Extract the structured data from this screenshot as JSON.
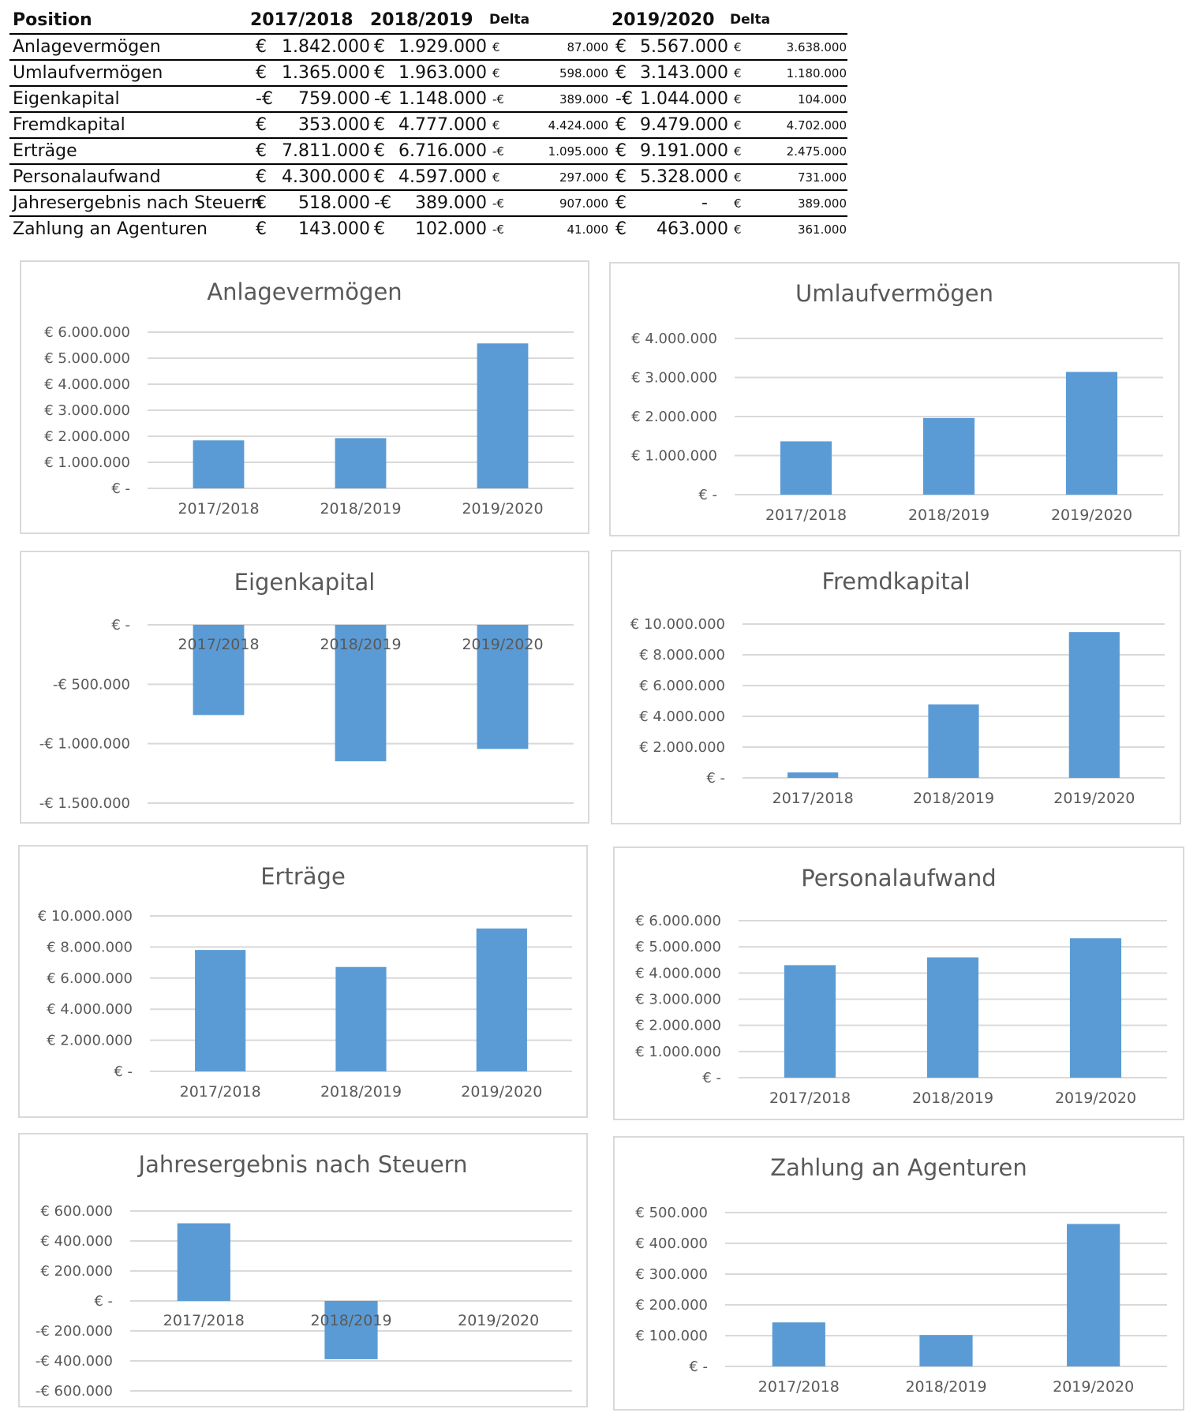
{
  "table": {
    "headers": {
      "position": "Position",
      "y1": "2017/2018",
      "y2": "2018/2019",
      "delta1": "Delta",
      "y3": "2019/2020",
      "delta2": "Delta"
    },
    "rows": [
      {
        "position": "Anlagevermögen",
        "c1": {
          "cur": "€",
          "amt": "1.842.000"
        },
        "c2": {
          "cur": "€",
          "amt": "1.929.000"
        },
        "d1": {
          "cur": "€",
          "amt": "87.000"
        },
        "c3": {
          "cur": "€",
          "amt": "5.567.000"
        },
        "d2": {
          "cur": "€",
          "amt": "3.638.000"
        }
      },
      {
        "position": "Umlaufvermögen",
        "c1": {
          "cur": "€",
          "amt": "1.365.000"
        },
        "c2": {
          "cur": "€",
          "amt": "1.963.000"
        },
        "d1": {
          "cur": "€",
          "amt": "598.000"
        },
        "c3": {
          "cur": "€",
          "amt": "3.143.000"
        },
        "d2": {
          "cur": "€",
          "amt": "1.180.000"
        }
      },
      {
        "position": "Eigenkapital",
        "c1": {
          "cur": "-€",
          "amt": "759.000"
        },
        "c2": {
          "cur": "-€",
          "amt": "1.148.000"
        },
        "d1": {
          "cur": "-€",
          "amt": "389.000"
        },
        "c3": {
          "cur": "-€",
          "amt": "1.044.000"
        },
        "d2": {
          "cur": "€",
          "amt": "104.000"
        }
      },
      {
        "position": "Fremdkapital",
        "c1": {
          "cur": "€",
          "amt": "353.000"
        },
        "c2": {
          "cur": "€",
          "amt": "4.777.000"
        },
        "d1": {
          "cur": "€",
          "amt": "4.424.000"
        },
        "c3": {
          "cur": "€",
          "amt": "9.479.000"
        },
        "d2": {
          "cur": "€",
          "amt": "4.702.000"
        }
      },
      {
        "position": "Erträge",
        "c1": {
          "cur": "€",
          "amt": "7.811.000"
        },
        "c2": {
          "cur": "€",
          "amt": "6.716.000"
        },
        "d1": {
          "cur": "-€",
          "amt": "1.095.000"
        },
        "c3": {
          "cur": "€",
          "amt": "9.191.000"
        },
        "d2": {
          "cur": "€",
          "amt": "2.475.000"
        }
      },
      {
        "position": "Personalaufwand",
        "c1": {
          "cur": "€",
          "amt": "4.300.000"
        },
        "c2": {
          "cur": "€",
          "amt": "4.597.000"
        },
        "d1": {
          "cur": "€",
          "amt": "297.000"
        },
        "c3": {
          "cur": "€",
          "amt": "5.328.000"
        },
        "d2": {
          "cur": "€",
          "amt": "731.000"
        }
      },
      {
        "position": "Jahresergebnis nach Steuern",
        "c1": {
          "cur": "€",
          "amt": "518.000"
        },
        "c2": {
          "cur": "-€",
          "amt": "389.000"
        },
        "d1": {
          "cur": "-€",
          "amt": "907.000"
        },
        "c3": {
          "cur": "€",
          "amt": "-"
        },
        "d2": {
          "cur": "€",
          "amt": "389.000"
        }
      },
      {
        "position": "Zahlung an Agenturen",
        "c1": {
          "cur": "€",
          "amt": "143.000"
        },
        "c2": {
          "cur": "€",
          "amt": "102.000"
        },
        "d1": {
          "cur": "-€",
          "amt": "41.000"
        },
        "c3": {
          "cur": "€",
          "amt": "463.000"
        },
        "d2": {
          "cur": "€",
          "amt": "361.000"
        }
      }
    ]
  },
  "chart_data": [
    {
      "type": "bar",
      "title": "Anlagevermögen",
      "categories": [
        "2017/2018",
        "2018/2019",
        "2019/2020"
      ],
      "values": [
        1842000,
        1929000,
        5567000
      ],
      "ylim": [
        0,
        6000000
      ],
      "ticks": [
        6000000,
        5000000,
        4000000,
        3000000,
        2000000,
        1000000,
        0
      ],
      "tick_labels": [
        "€ 6.000.000",
        "€ 5.000.000",
        "€ 4.000.000",
        "€ 3.000.000",
        "€ 2.000.000",
        "€ 1.000.000",
        "€ -"
      ],
      "grid": true,
      "color": "#5b9bd5"
    },
    {
      "type": "bar",
      "title": "Umlaufvermögen",
      "categories": [
        "2017/2018",
        "2018/2019",
        "2019/2020"
      ],
      "values": [
        1365000,
        1963000,
        3143000
      ],
      "ylim": [
        0,
        4000000
      ],
      "ticks": [
        4000000,
        3000000,
        2000000,
        1000000,
        0
      ],
      "tick_labels": [
        "€ 4.000.000",
        "€ 3.000.000",
        "€ 2.000.000",
        "€ 1.000.000",
        "€ -"
      ],
      "grid": true,
      "color": "#5b9bd5"
    },
    {
      "type": "bar",
      "title": "Eigenkapital",
      "categories": [
        "2017/2018",
        "2018/2019",
        "2019/2020"
      ],
      "values": [
        -759000,
        -1148000,
        -1044000
      ],
      "ylim": [
        -1500000,
        0
      ],
      "ticks": [
        0,
        -500000,
        -1000000,
        -1500000
      ],
      "tick_labels": [
        "€ -",
        "-€ 500.000",
        "-€ 1.000.000",
        "-€ 1.500.000"
      ],
      "grid": true,
      "color": "#5b9bd5"
    },
    {
      "type": "bar",
      "title": "Fremdkapital",
      "categories": [
        "2017/2018",
        "2018/2019",
        "2019/2020"
      ],
      "values": [
        353000,
        4777000,
        9479000
      ],
      "ylim": [
        0,
        10000000
      ],
      "ticks": [
        10000000,
        8000000,
        6000000,
        4000000,
        2000000,
        0
      ],
      "tick_labels": [
        "€ 10.000.000",
        "€ 8.000.000",
        "€ 6.000.000",
        "€ 4.000.000",
        "€ 2.000.000",
        "€ -"
      ],
      "grid": true,
      "color": "#5b9bd5"
    },
    {
      "type": "bar",
      "title": "Erträge",
      "categories": [
        "2017/2018",
        "2018/2019",
        "2019/2020"
      ],
      "values": [
        7811000,
        6716000,
        9191000
      ],
      "ylim": [
        0,
        10000000
      ],
      "ticks": [
        10000000,
        8000000,
        6000000,
        4000000,
        2000000,
        0
      ],
      "tick_labels": [
        "€ 10.000.000",
        "€ 8.000.000",
        "€ 6.000.000",
        "€ 4.000.000",
        "€ 2.000.000",
        "€ -"
      ],
      "grid": true,
      "color": "#5b9bd5"
    },
    {
      "type": "bar",
      "title": "Personalaufwand",
      "categories": [
        "2017/2018",
        "2018/2019",
        "2019/2020"
      ],
      "values": [
        4300000,
        4597000,
        5328000
      ],
      "ylim": [
        0,
        6000000
      ],
      "ticks": [
        6000000,
        5000000,
        4000000,
        3000000,
        2000000,
        1000000,
        0
      ],
      "tick_labels": [
        "€ 6.000.000",
        "€ 5.000.000",
        "€ 4.000.000",
        "€ 3.000.000",
        "€ 2.000.000",
        "€ 1.000.000",
        "€ -"
      ],
      "grid": true,
      "color": "#5b9bd5"
    },
    {
      "type": "bar",
      "title": "Jahresergebnis nach Steuern",
      "categories": [
        "2017/2018",
        "2018/2019",
        "2019/2020"
      ],
      "values": [
        518000,
        -389000,
        0
      ],
      "ylim": [
        -600000,
        600000
      ],
      "ticks": [
        600000,
        400000,
        200000,
        0,
        -200000,
        -400000,
        -600000
      ],
      "tick_labels": [
        "€ 600.000",
        "€ 400.000",
        "€ 200.000",
        "€ -",
        "-€ 200.000",
        "-€ 400.000",
        "-€ 600.000"
      ],
      "grid": true,
      "color": "#5b9bd5"
    },
    {
      "type": "bar",
      "title": "Zahlung an Agenturen",
      "categories": [
        "2017/2018",
        "2018/2019",
        "2019/2020"
      ],
      "values": [
        143000,
        102000,
        463000
      ],
      "ylim": [
        0,
        500000
      ],
      "ticks": [
        500000,
        400000,
        300000,
        200000,
        100000,
        0
      ],
      "tick_labels": [
        "€ 500.000",
        "€ 400.000",
        "€ 300.000",
        "€ 200.000",
        "€ 100.000",
        "€ -"
      ],
      "grid": true,
      "color": "#5b9bd5"
    }
  ]
}
